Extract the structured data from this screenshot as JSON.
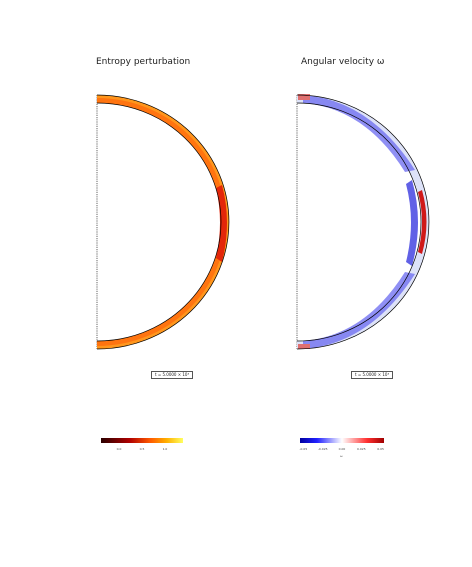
{
  "panels": [
    {
      "id": "entropy",
      "title": "Entropy perturbation",
      "time_label": "t = 5.0000 × 10³",
      "colormap": "hot",
      "colors": {
        "dark": "#2a0000",
        "mid": "#e02a00",
        "hot": "#ff8c00",
        "light": "#ffff40"
      },
      "colorbar_ticks": [
        "0.0",
        "0.5",
        "1.0"
      ],
      "colorbar_label": ""
    },
    {
      "id": "omega",
      "title": "Angular velocity ω",
      "time_label": "t = 5.0000 × 10³",
      "colormap": "seismic",
      "colors": {
        "neg": "#0000c8",
        "zero": "#ffffff",
        "pos": "#b40000"
      },
      "colorbar_ticks": [
        "-0.05",
        "-0.025",
        "0.00",
        "0.025",
        "0.05"
      ],
      "colorbar_label": "ω"
    }
  ]
}
